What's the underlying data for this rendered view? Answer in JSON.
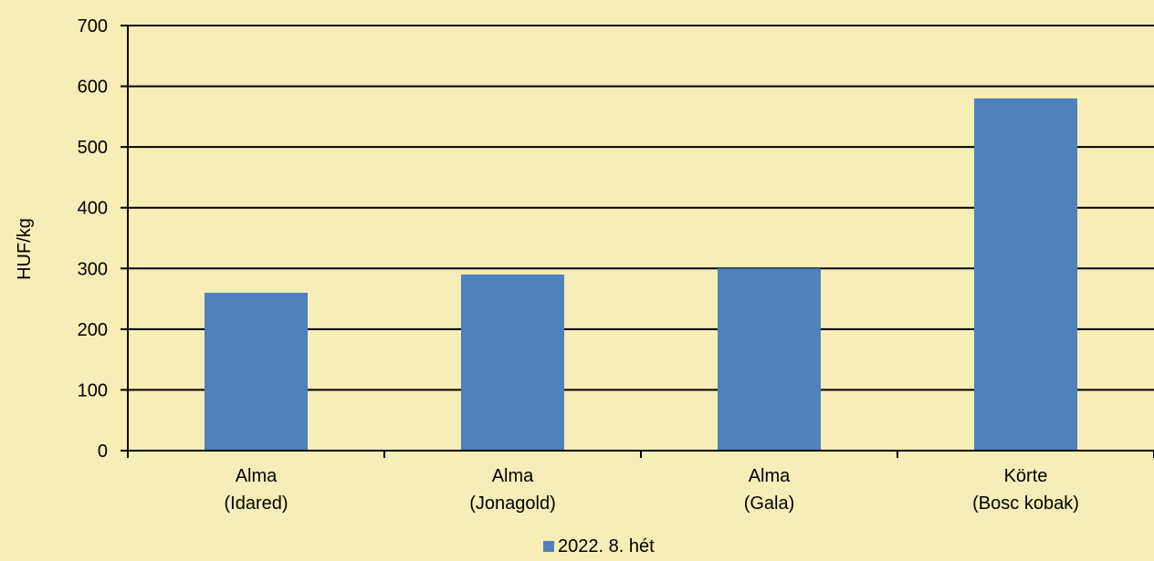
{
  "chart_data": {
    "type": "bar",
    "categories": [
      [
        "Alma",
        "(Idared)"
      ],
      [
        "Alma",
        "(Jonagold)"
      ],
      [
        "Alma",
        "(Gala)"
      ],
      [
        "Körte",
        "(Bosc kobak)"
      ]
    ],
    "series": [
      {
        "name": "2022. 8. hét",
        "values": [
          260,
          290,
          300,
          580
        ],
        "color": "#4f81bd"
      }
    ],
    "ylabel": "HUF/kg",
    "ylim": [
      0,
      700
    ],
    "yticks": [
      0,
      100,
      200,
      300,
      400,
      500,
      600,
      700
    ],
    "grid": true,
    "legend": "bottom-center",
    "background_color": "#f7edb6"
  }
}
